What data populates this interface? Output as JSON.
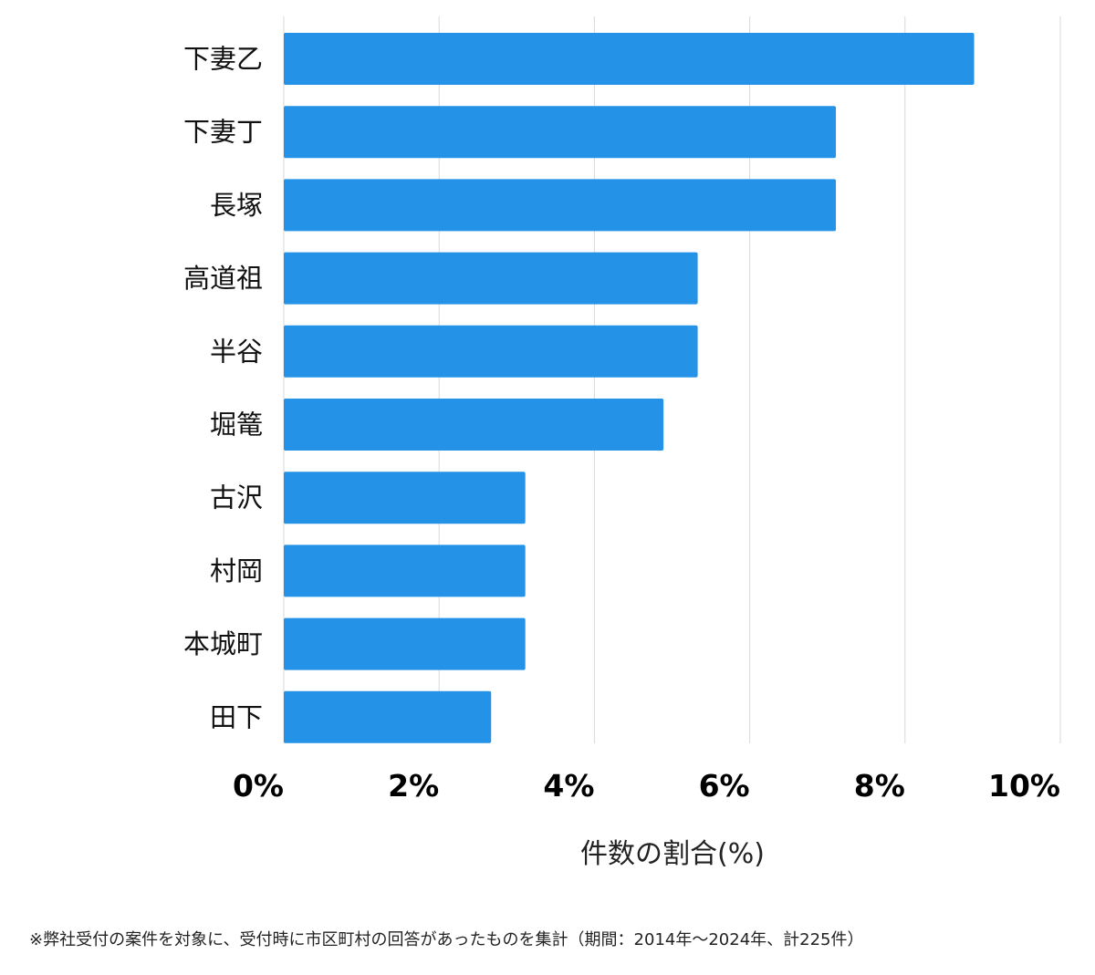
{
  "chart_data": {
    "type": "bar",
    "orientation": "horizontal",
    "categories": [
      "下妻乙",
      "下妻丁",
      "長塚",
      "高道祖",
      "半谷",
      "堀篭",
      "古沢",
      "村岡",
      "本城町",
      "田下"
    ],
    "values": [
      8.89,
      7.11,
      7.11,
      5.33,
      5.33,
      4.89,
      3.11,
      3.11,
      3.11,
      2.67
    ],
    "xlabel": "件数の割合(%)",
    "xlim": [
      0,
      10
    ],
    "xticks": [
      0,
      2,
      4,
      6,
      8,
      10
    ],
    "xtick_labels": [
      "0%",
      "2%",
      "4%",
      "6%",
      "8%",
      "10%"
    ],
    "grid": "vertical",
    "bar_color": "#2492e6"
  },
  "footnote": "※弊社受付の案件を対象に、受付時に市区町村の回答があったものを集計（期間：2014年～2024年、計225件）"
}
